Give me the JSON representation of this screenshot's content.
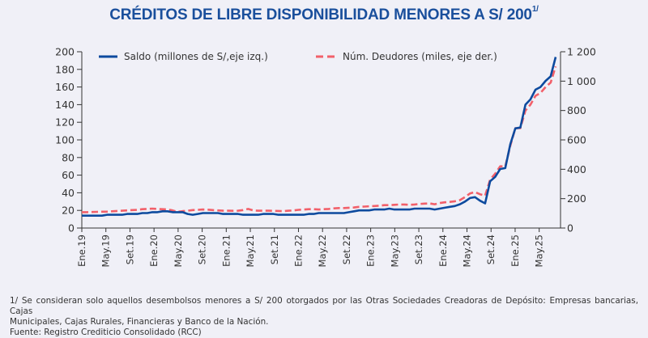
{
  "title": {
    "main": "CRÉDITOS DE LIBRE DISPONIBILIDAD MENORES A S/ 200",
    "superscript": "1/"
  },
  "notes": {
    "footnote_line1": "1/ Se consideran solo aquellos desembolsos menores a S/ 200 otorgados por las Otras Sociedades Creadoras de Depósito: Empresas bancarias, Cajas",
    "footnote_line2": "Municipales, Cajas Rurales, Financieras y Banco de la Nación.",
    "source": "Fuente: Registro Crediticio Consolidado (RCC)"
  },
  "colors": {
    "saldo": "#0d4a9e",
    "deudores": "#f2606a",
    "title": "#1a4f9c",
    "background": "#f0f0f7"
  },
  "chart_data": {
    "type": "line",
    "title": "CRÉDITOS DE LIBRE DISPONIBILIDAD MENORES A S/ 200 1/",
    "xlabel": "",
    "ylabel": "Saldo (millones de S/)",
    "y2label": "Núm. Deudores (miles)",
    "ylim": [
      0,
      200
    ],
    "y2lim": [
      0,
      1200
    ],
    "yticks": [
      "0",
      "20",
      "40",
      "60",
      "80",
      "100",
      "120",
      "140",
      "160",
      "180",
      "200"
    ],
    "y2ticks": [
      "0",
      "200",
      "400",
      "600",
      "800",
      "1 000",
      "1 200"
    ],
    "xtick_labels": [
      "Ene.19",
      "May.19",
      "Set.19",
      "Ene.20",
      "May.20",
      "Set.20",
      "Ene.21",
      "May.21",
      "Set.21",
      "Ene.22",
      "May.22",
      "Set.22",
      "Ene.23",
      "May.23",
      "Set.23",
      "Ene.24",
      "May.24",
      "Set.24",
      "Ene.25",
      "May.25"
    ],
    "x_start": "Ene.19",
    "x_frequency": "monthly",
    "grid": false,
    "legend_position": "top",
    "series": [
      {
        "name": "Saldo (millones de S/,eje izq.)",
        "axis": "left",
        "style": "solid",
        "values": [
          14,
          14,
          14,
          14,
          14,
          15,
          15,
          15,
          15,
          16,
          16,
          16,
          17,
          17,
          18,
          18,
          19,
          19,
          18,
          18,
          18,
          16,
          15,
          16,
          17,
          17,
          17,
          17,
          16,
          16,
          16,
          16,
          15,
          15,
          15,
          15,
          16,
          16,
          16,
          15,
          15,
          15,
          15,
          15,
          15,
          16,
          16,
          17,
          17,
          17,
          17,
          17,
          17,
          18,
          19,
          20,
          20,
          20,
          21,
          21,
          21,
          22,
          21,
          21,
          21,
          21,
          22,
          22,
          22,
          22,
          21,
          22,
          23,
          24,
          25,
          27,
          30,
          34,
          35,
          31,
          28,
          53,
          58,
          67,
          68,
          95,
          113,
          114,
          140,
          146,
          157,
          160,
          167,
          172,
          194
        ]
      },
      {
        "name": "Núm. Deudores (miles, eje der.)",
        "axis": "right",
        "style": "dashed",
        "values": [
          108,
          108,
          109,
          110,
          111,
          112,
          114,
          116,
          118,
          120,
          122,
          124,
          128,
          130,
          132,
          130,
          128,
          126,
          120,
          110,
          115,
          118,
          122,
          124,
          126,
          125,
          122,
          120,
          118,
          118,
          117,
          118,
          122,
          130,
          120,
          118,
          118,
          118,
          117,
          116,
          115,
          118,
          120,
          124,
          126,
          128,
          128,
          126,
          128,
          130,
          134,
          136,
          136,
          138,
          140,
          144,
          146,
          148,
          150,
          152,
          156,
          156,
          158,
          160,
          160,
          158,
          160,
          164,
          166,
          168,
          162,
          170,
          175,
          178,
          182,
          190,
          210,
          235,
          245,
          230,
          220,
          330,
          370,
          420,
          420,
          560,
          680,
          680,
          800,
          840,
          900,
          920,
          960,
          990,
          1100
        ]
      }
    ]
  }
}
